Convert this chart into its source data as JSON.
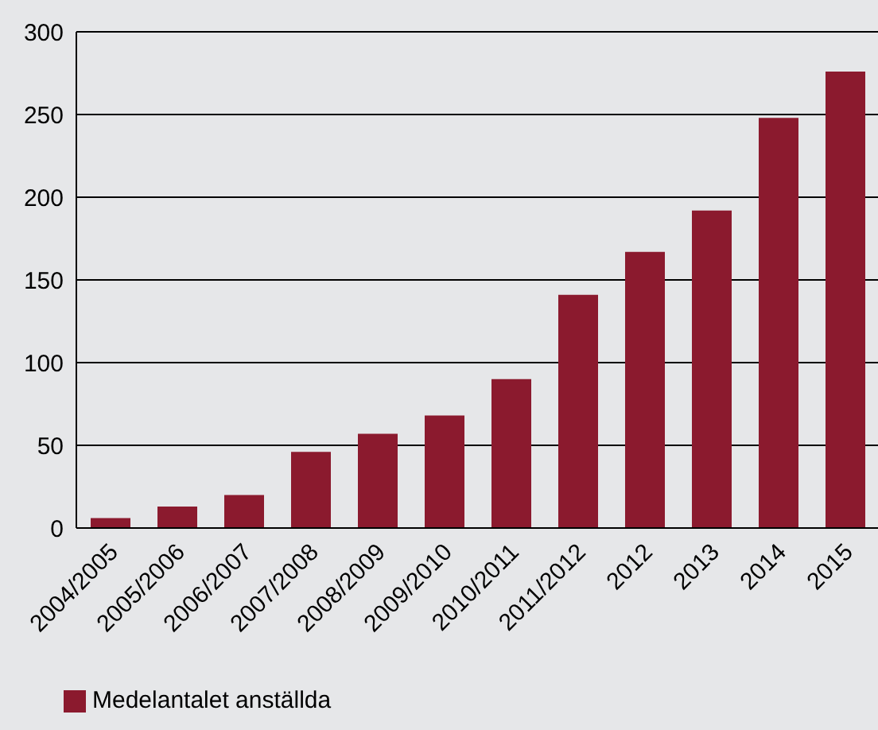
{
  "chart_data": {
    "type": "bar",
    "categories": [
      "2004/2005",
      "2005/2006",
      "2006/2007",
      "2007/2008",
      "2008/2009",
      "2009/2010",
      "2010/2011",
      "2011/2012",
      "2012",
      "2013",
      "2014",
      "2015"
    ],
    "series": [
      {
        "name": "Medelantalet anställda",
        "color": "#8b1a2e",
        "values": [
          6,
          13,
          20,
          46,
          57,
          68,
          90,
          141,
          167,
          192,
          248,
          276
        ]
      }
    ],
    "ylim": [
      0,
      300
    ],
    "yticks": [
      0,
      50,
      100,
      150,
      200,
      250,
      300
    ],
    "grid": "y",
    "legend": "bottom left"
  }
}
